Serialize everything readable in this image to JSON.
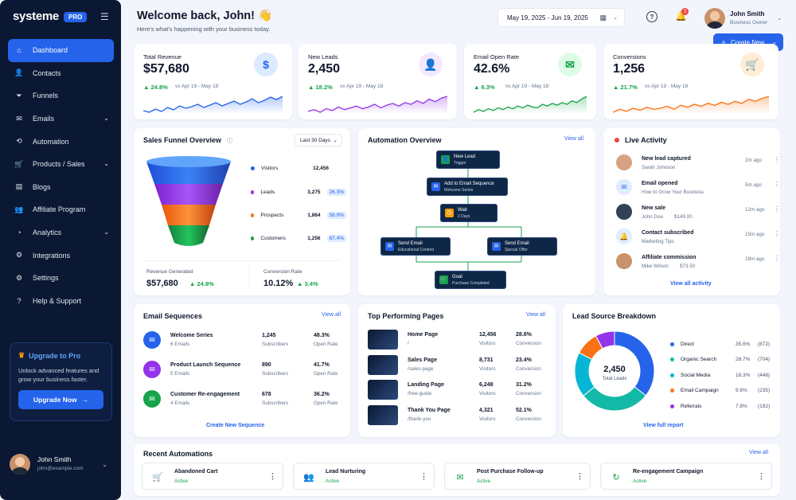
{
  "brand": {
    "name": "systeme",
    "badge": "PRO"
  },
  "nav": [
    {
      "label": "Dashboard",
      "icon": "home-icon",
      "active": true
    },
    {
      "label": "Contacts",
      "icon": "contacts-icon"
    },
    {
      "label": "Funnels",
      "icon": "funnel-icon"
    },
    {
      "label": "Emails",
      "icon": "mail-icon",
      "chevron": true
    },
    {
      "label": "Automation",
      "icon": "automation-icon"
    },
    {
      "label": "Products / Sales",
      "icon": "cart-icon",
      "chevron": true
    },
    {
      "label": "Blogs",
      "icon": "blog-icon"
    },
    {
      "label": "Affiliate Program",
      "icon": "affiliate-icon"
    },
    {
      "label": "Analytics",
      "icon": "analytics-icon",
      "chevron": true
    },
    {
      "label": "Integrations",
      "icon": "integrations-icon"
    },
    {
      "label": "Settings",
      "icon": "gear-icon"
    },
    {
      "label": "Help & Support",
      "icon": "help-icon"
    }
  ],
  "upgrade": {
    "title": "Upgrade to Pro",
    "desc": "Unlock advanced features and grow your business faster.",
    "button": "Upgrade Now"
  },
  "sidebar_user": {
    "name": "John Smith",
    "email": "john@example.com"
  },
  "header": {
    "title": "Welcome back, John! 👋",
    "subtitle": "Here's what's happening with your business today.",
    "date_range": "May 19, 2025 - Jun 19, 2025",
    "notifications": "3",
    "user_name": "John Smith",
    "user_role": "Business Owner",
    "create_button": "Create New"
  },
  "stats": [
    {
      "label": "Total Revenue",
      "value": "$57,680",
      "change": "24.8%",
      "compare": "vs Apr 19 - May 18",
      "icon": "$",
      "color": "#2563eb",
      "bg": "#dbeafe",
      "trend": [
        12,
        10,
        14,
        11,
        16,
        13,
        18,
        15,
        17,
        20,
        16,
        19,
        22,
        18,
        21,
        24,
        20,
        23,
        27,
        22,
        25,
        29,
        26,
        30
      ]
    },
    {
      "label": "New Leads",
      "value": "2,450",
      "change": "18.2%",
      "compare": "vs Apr 19 - May 18",
      "icon": "person",
      "color": "#9333ea",
      "bg": "#f3e8ff",
      "trend": [
        10,
        12,
        9,
        13,
        11,
        15,
        12,
        14,
        16,
        13,
        15,
        18,
        14,
        17,
        19,
        16,
        20,
        18,
        22,
        19,
        24,
        21,
        25,
        27
      ]
    },
    {
      "label": "Email Open Rate",
      "value": "42.6%",
      "change": "6.3%",
      "compare": "vs Apr 19 - May 18",
      "icon": "mail",
      "color": "#16a34a",
      "bg": "#dcfce7",
      "trend": [
        8,
        11,
        9,
        12,
        10,
        13,
        11,
        14,
        12,
        15,
        13,
        16,
        14,
        13,
        17,
        15,
        18,
        16,
        19,
        17,
        21,
        19,
        23,
        26
      ]
    },
    {
      "label": "Conversions",
      "value": "1,256",
      "change": "21.7%",
      "compare": "vs Apr 19 - May 18",
      "icon": "cart",
      "color": "#f97316",
      "bg": "#ffedd5",
      "trend": [
        9,
        12,
        10,
        13,
        11,
        14,
        12,
        13,
        15,
        12,
        16,
        14,
        17,
        15,
        18,
        16,
        19,
        17,
        20,
        18,
        22,
        20,
        23,
        25
      ]
    }
  ],
  "funnel": {
    "title": "Sales Funnel Overview",
    "range": "Last 30 Days",
    "rows": [
      {
        "label": "Visitors",
        "value": "12,456",
        "pct": "",
        "color": "#2563eb"
      },
      {
        "label": "Leads",
        "value": "3,275",
        "pct": "26.3%",
        "color": "#9333ea"
      },
      {
        "label": "Prospects",
        "value": "1,864",
        "pct": "56.9%",
        "color": "#f97316"
      },
      {
        "label": "Customers",
        "value": "1,256",
        "pct": "67.4%",
        "color": "#16a34a"
      }
    ],
    "revenue_label": "Revenue Generated",
    "revenue": "$57,680",
    "revenue_change": "24.8%",
    "conv_label": "Conversion Rate",
    "conv": "10.12%",
    "conv_change": "3.4%"
  },
  "automation": {
    "title": "Automation Overview",
    "view_all": "View all",
    "nodes": [
      {
        "title": "New Lead",
        "sub": "Trigger",
        "color": "#16a34a"
      },
      {
        "title": "Add to Email Sequence",
        "sub": "Welcome Series",
        "color": "#2563eb"
      },
      {
        "title": "Wait",
        "sub": "2 Days",
        "color": "#f59e0b"
      },
      {
        "title": "Send Email",
        "sub": "Educational Content",
        "color": "#2563eb"
      },
      {
        "title": "Send Email",
        "sub": "Special Offer",
        "color": "#2563eb"
      },
      {
        "title": "Goal",
        "sub": "Purchase Completed",
        "color": "#16a34a"
      }
    ]
  },
  "activity": {
    "title": "Live Activity",
    "view_all": "View all activity",
    "items": [
      {
        "title": "New lead captured",
        "sub": "Sarah Johnson",
        "time": "2m ago",
        "extra": ""
      },
      {
        "title": "Email opened",
        "sub": "How to Grow Your Business",
        "time": "5m ago",
        "extra": ""
      },
      {
        "title": "New sale",
        "sub": "John Doe",
        "time": "12m ago",
        "extra": "$149.00"
      },
      {
        "title": "Contact subscribed",
        "sub": "Marketing Tips",
        "time": "15m ago",
        "extra": ""
      },
      {
        "title": "Affiliate commission",
        "sub": "Mike Wilson",
        "time": "18m ago",
        "extra": "$73.50"
      }
    ]
  },
  "sequences": {
    "title": "Email Sequences",
    "view_all": "View all",
    "create": "Create New Sequence",
    "items": [
      {
        "name": "Welcome Series",
        "emails": "6 Emails",
        "subs": "1,245",
        "open": "48.3%",
        "color": "#2563eb"
      },
      {
        "name": "Product Launch Sequence",
        "emails": "5 Emails",
        "subs": "890",
        "open": "41.7%",
        "color": "#9333ea"
      },
      {
        "name": "Customer Re-engagement",
        "emails": "4 Emails",
        "subs": "678",
        "open": "36.2%",
        "color": "#16a34a"
      }
    ],
    "subs_label": "Subscribers",
    "open_label": "Open Rate"
  },
  "pages": {
    "title": "Top Performing Pages",
    "view_all": "View all",
    "visitors_label": "Visitors",
    "conv_label": "Conversion",
    "items": [
      {
        "name": "Home Page",
        "path": "/",
        "visitors": "12,456",
        "conv": "28.6%"
      },
      {
        "name": "Sales Page",
        "path": "/sales-page",
        "visitors": "8,731",
        "conv": "23.4%"
      },
      {
        "name": "Landing Page",
        "path": "/free-guide",
        "visitors": "6,248",
        "conv": "31.2%"
      },
      {
        "name": "Thank You Page",
        "path": "/thank-you",
        "visitors": "4,321",
        "conv": "52.1%"
      }
    ]
  },
  "sources": {
    "title": "Lead Source Breakdown",
    "total": "2,450",
    "total_label": "Total Leads",
    "view": "View full report",
    "items": [
      {
        "name": "Direct",
        "pct": "35.6%",
        "count": "(872)",
        "color": "#2563eb",
        "share": 0.356
      },
      {
        "name": "Organic Search",
        "pct": "28.7%",
        "count": "(704)",
        "color": "#14b8a6",
        "share": 0.287
      },
      {
        "name": "Social Media",
        "pct": "18.3%",
        "count": "(448)",
        "color": "#06b6d4",
        "share": 0.183
      },
      {
        "name": "Email Campaign",
        "pct": "9.6%",
        "count": "(235)",
        "color": "#f97316",
        "share": 0.096
      },
      {
        "name": "Referrals",
        "pct": "7.8%",
        "count": "(192)",
        "color": "#9333ea",
        "share": 0.078
      }
    ]
  },
  "recent": {
    "title": "Recent Automations",
    "view_all": "View all",
    "items": [
      {
        "name": "Abandoned Cart",
        "status": "Active",
        "icon": "🛒"
      },
      {
        "name": "Lead Nurturing",
        "status": "Active",
        "icon": "👥"
      },
      {
        "name": "Post Purchase Follow-up",
        "status": "Active",
        "icon": "✉"
      },
      {
        "name": "Re-engagement Campaign",
        "status": "Active",
        "icon": "↻"
      }
    ]
  }
}
